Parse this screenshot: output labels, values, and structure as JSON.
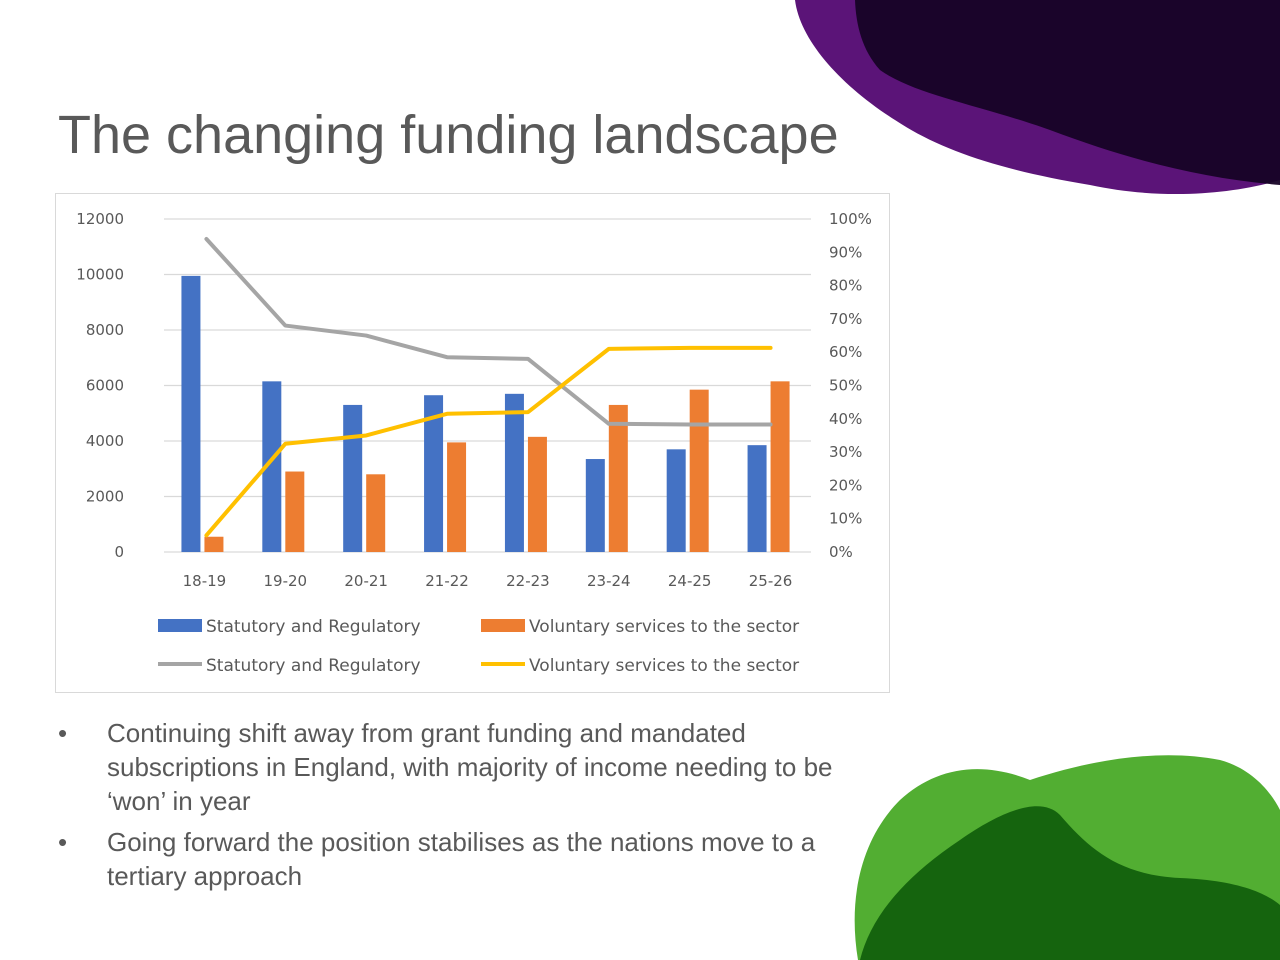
{
  "slide": {
    "title": "The changing funding landscape",
    "bullet_symbol": "•",
    "bullets": [
      "Continuing shift away from grant funding and mandated subscriptions in England, with majority of income needing to be ‘won’ in year",
      "Going forward the position stabilises as the nations move to a tertiary approach"
    ]
  },
  "colors": {
    "title_text": "#595959",
    "bar_statutory": "#4472C4",
    "bar_voluntary": "#ED7D31",
    "line_statutory": "#A5A5A5",
    "line_voluntary": "#FFC000",
    "decor_purple": "#5B1478",
    "decor_dark": "#170326",
    "decor_green": "#52AE32",
    "decor_dark_green": "#0E5C0A"
  },
  "chart_data": {
    "type": "bar",
    "combo": "bar+line",
    "categories": [
      "18-19",
      "19-20",
      "20-21",
      "21-22",
      "22-23",
      "23-24",
      "24-25",
      "25-26"
    ],
    "y_left": {
      "ylim": [
        0,
        12000
      ],
      "ticks": [
        0,
        2000,
        4000,
        6000,
        8000,
        10000,
        12000
      ],
      "tick_labels": [
        "0",
        "2000",
        "4000",
        "6000",
        "8000",
        "10000",
        "12000"
      ]
    },
    "y_right": {
      "ylim": [
        0,
        1
      ],
      "ticks": [
        0,
        0.1,
        0.2,
        0.3,
        0.4,
        0.5,
        0.6,
        0.7,
        0.8,
        0.9,
        1.0
      ],
      "tick_labels": [
        "0%",
        "10%",
        "20%",
        "30%",
        "40%",
        "50%",
        "60%",
        "70%",
        "80%",
        "90%",
        "100%"
      ]
    },
    "series": [
      {
        "name": "Statutory and Regulatory",
        "kind": "bar",
        "axis": "left",
        "color": "#4472C4",
        "values": [
          9950,
          6150,
          5300,
          5650,
          5700,
          3350,
          3700,
          3850
        ]
      },
      {
        "name": "Voluntary services to the sector",
        "kind": "bar",
        "axis": "left",
        "color": "#ED7D31",
        "values": [
          550,
          2900,
          2800,
          3950,
          4150,
          5300,
          5850,
          6150
        ]
      },
      {
        "name": "Statutory and Regulatory",
        "kind": "line",
        "axis": "right",
        "color": "#A5A5A5",
        "values": [
          0.94,
          0.68,
          0.65,
          0.585,
          0.58,
          0.385,
          0.383,
          0.383
        ]
      },
      {
        "name": "Voluntary services to the sector",
        "kind": "line",
        "axis": "right",
        "color": "#FFC000",
        "values": [
          0.05,
          0.325,
          0.35,
          0.415,
          0.42,
          0.61,
          0.613,
          0.613
        ]
      }
    ],
    "grid": true,
    "legend": "bottom"
  }
}
